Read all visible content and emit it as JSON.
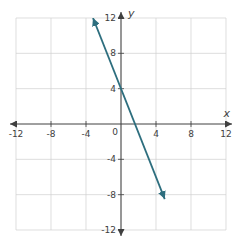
{
  "chart_data": {
    "type": "line",
    "x_label": "x",
    "y_label": "y",
    "x": [
      -3.2,
      5.0
    ],
    "values": [
      12,
      -8.5
    ],
    "color": "#2d6e7e",
    "xlim": [
      -12,
      12
    ],
    "ylim": [
      -12,
      12
    ],
    "xticks": [
      -12,
      -8,
      -4,
      0,
      4,
      8,
      12
    ],
    "yticks": [
      -12,
      -8,
      -4,
      4,
      8,
      12
    ],
    "grid": true
  }
}
